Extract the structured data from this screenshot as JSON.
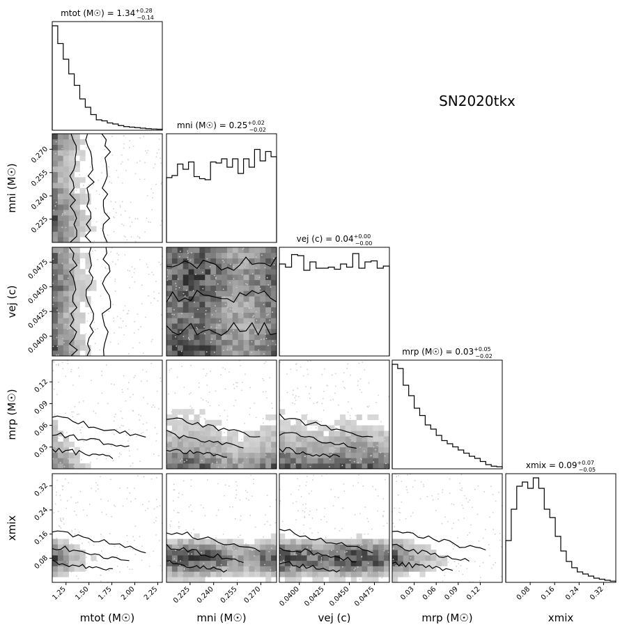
{
  "chart_data": {
    "type": "corner",
    "title": "SN2020tkx",
    "parameters": [
      {
        "key": "mtot",
        "label": "mtot (M☉)",
        "title_name": "mtot (M☉)",
        "median": "1.34",
        "plus": "0.28",
        "minus": "0.14",
        "range": [
          1.1,
          2.3
        ],
        "ticks": [
          1.25,
          1.5,
          1.75,
          2.0,
          2.25
        ],
        "tick_labels": [
          "1.25",
          "1.50",
          "1.75",
          "2.00",
          "2.25"
        ]
      },
      {
        "key": "mni",
        "label": "mni (M☉)",
        "title_name": "mni (M☉)",
        "median": "0.25",
        "plus": "0.02",
        "minus": "0.02",
        "range": [
          0.21,
          0.28
        ],
        "ticks": [
          0.225,
          0.24,
          0.255,
          0.27
        ],
        "tick_labels": [
          "0.225",
          "0.240",
          "0.255",
          "0.270"
        ]
      },
      {
        "key": "vej",
        "label": "vej (c)",
        "title_name": "vej (c)",
        "median": "0.04",
        "plus": "0.00",
        "minus": "0.00",
        "range": [
          0.038,
          0.049
        ],
        "ticks": [
          0.04,
          0.0425,
          0.045,
          0.0475
        ],
        "tick_labels": [
          "0.0400",
          "0.0425",
          "0.0450",
          "0.0475"
        ]
      },
      {
        "key": "mrp",
        "label": "mrp (M☉)",
        "title_name": "mrp (M☉)",
        "median": "0.03",
        "plus": "0.05",
        "minus": "0.02",
        "range": [
          0.0,
          0.15
        ],
        "ticks": [
          0.03,
          0.06,
          0.09,
          0.12
        ],
        "tick_labels": [
          "0.03",
          "0.06",
          "0.09",
          "0.12"
        ]
      },
      {
        "key": "xmix",
        "label": "xmix",
        "title_name": "xmix",
        "median": "0.09",
        "plus": "0.07",
        "minus": "0.05",
        "range": [
          0.0,
          0.36
        ],
        "ticks": [
          0.08,
          0.16,
          0.24,
          0.32
        ],
        "tick_labels": [
          "0.08",
          "0.16",
          "0.24",
          "0.32"
        ]
      }
    ],
    "histograms": {
      "mtot": [
        1.0,
        0.83,
        0.68,
        0.54,
        0.43,
        0.3,
        0.22,
        0.15,
        0.1,
        0.09,
        0.07,
        0.06,
        0.045,
        0.035,
        0.03,
        0.025,
        0.02,
        0.015,
        0.012,
        0.01
      ],
      "mni": [
        0.62,
        0.64,
        0.75,
        0.7,
        0.77,
        0.63,
        0.61,
        0.6,
        0.77,
        0.76,
        0.8,
        0.72,
        0.8,
        0.66,
        0.8,
        0.72,
        0.89,
        0.78,
        0.87,
        0.82
      ],
      "vej": [
        0.88,
        0.85,
        0.97,
        0.96,
        0.82,
        0.9,
        0.84,
        0.84,
        0.85,
        0.83,
        0.88,
        0.85,
        0.98,
        0.84,
        0.9,
        0.91,
        0.84,
        0.86
      ],
      "mrp": [
        1.0,
        0.96,
        0.8,
        0.7,
        0.58,
        0.51,
        0.42,
        0.38,
        0.32,
        0.27,
        0.24,
        0.21,
        0.18,
        0.15,
        0.12,
        0.1,
        0.07,
        0.04,
        0.025,
        0.02
      ],
      "xmix": [
        0.4,
        0.7,
        0.92,
        0.96,
        0.9,
        1.0,
        0.9,
        0.7,
        0.62,
        0.44,
        0.3,
        0.2,
        0.14,
        0.1,
        0.08,
        0.06,
        0.04,
        0.03,
        0.02,
        0.012
      ]
    },
    "xlabel_positions": "bottom",
    "grid": false
  }
}
